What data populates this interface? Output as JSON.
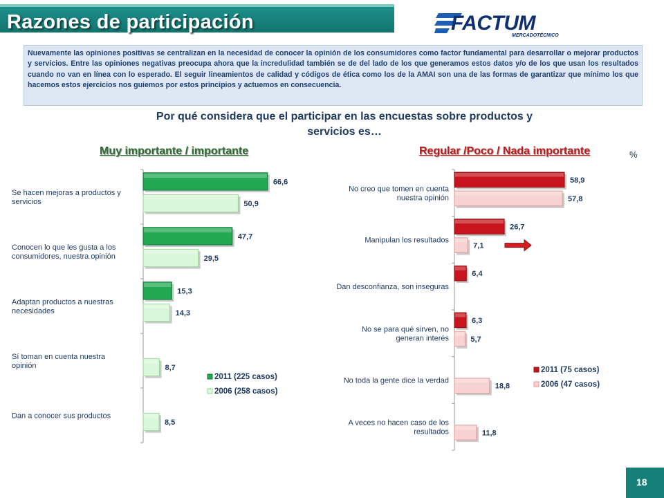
{
  "page": {
    "title": "Razones de participación",
    "logo_text": "FACTUM",
    "logo_subtext": "MERCADOTÉCNICO",
    "intro": "Nuevamente las opiniones positivas se centralizan en la necesidad de conocer la opinión de los consumidores como factor fundamental para desarrollar o mejorar productos y servicios. Entre las opiniones negativas preocupa ahora que la incredulidad también se de del lado de los que  generamos estos datos y/o de los que usan los resultados cuando no van en línea con lo esperado. El seguir lineamientos de calidad y códigos de ética como los de la AMAI son una de las formas de garantizar que mínimo los que hacemos estos ejercicios nos guiemos por estos principios y actuemos en consecuencia.",
    "question_line1": "Por qué considera que el participar en las encuestas sobre productos y",
    "question_line2": "servicios es…",
    "percent_symbol": "%",
    "page_number": "18",
    "colors": {
      "teal": "#15807a",
      "green": "#22a852",
      "light_green": "#d9f7d9",
      "red": "#c8141c",
      "light_red": "#f7d2d2",
      "navy": "#1f3a63"
    }
  },
  "chart_data": [
    {
      "type": "bar",
      "orientation": "horizontal",
      "title": "Muy importante / importante",
      "categories": [
        "Se hacen mejoras a productos y servicios",
        "Conocen lo que les gusta a los consumidores, nuestra opinión",
        "Adaptan productos a nuestras necesidades",
        "Sí toman en cuenta nuestra opinión",
        "Dan a conocer sus productos"
      ],
      "series": [
        {
          "name": "2011 (225 casos)",
          "color": "#22a852",
          "values": [
            66.6,
            47.7,
            15.3,
            null,
            null
          ],
          "labels": [
            "66,6",
            "47,7",
            "15,3",
            "",
            ""
          ]
        },
        {
          "name": "2006 (258 casos)",
          "color": "#d9f7d9",
          "values": [
            50.9,
            29.5,
            14.3,
            8.7,
            8.5
          ],
          "labels": [
            "50,9",
            "29,5",
            "14,3",
            "8,7",
            "8,5"
          ]
        }
      ],
      "legend_position": "bottom-right"
    },
    {
      "type": "bar",
      "orientation": "horizontal",
      "title": "Regular /Poco / Nada importante",
      "categories": [
        "No creo que tomen en cuenta nuestra opinión",
        "Manipulan los resultados",
        "Dan desconfianza, son inseguras",
        "No se para qué sirven, no generan interés",
        "No toda la gente dice la verdad",
        "A veces no hacen caso de los resultados"
      ],
      "series": [
        {
          "name": "2011 (75 casos)",
          "color": "#c8141c",
          "values": [
            58.9,
            26.7,
            6.4,
            6.3,
            null,
            null
          ],
          "labels": [
            "58,9",
            "26,7",
            "6,4",
            "6,3",
            "",
            ""
          ]
        },
        {
          "name": "2006 (47 casos)",
          "color": "#f7d2d2",
          "values": [
            57.8,
            7.1,
            null,
            5.7,
            18.8,
            11.8
          ],
          "labels": [
            "57,8",
            "7,1",
            "",
            "5,7",
            "18,8",
            "11,8"
          ]
        }
      ],
      "legend_position": "bottom-right",
      "annotation": "red arrow pointing right next to Manipulan los resultados"
    }
  ]
}
